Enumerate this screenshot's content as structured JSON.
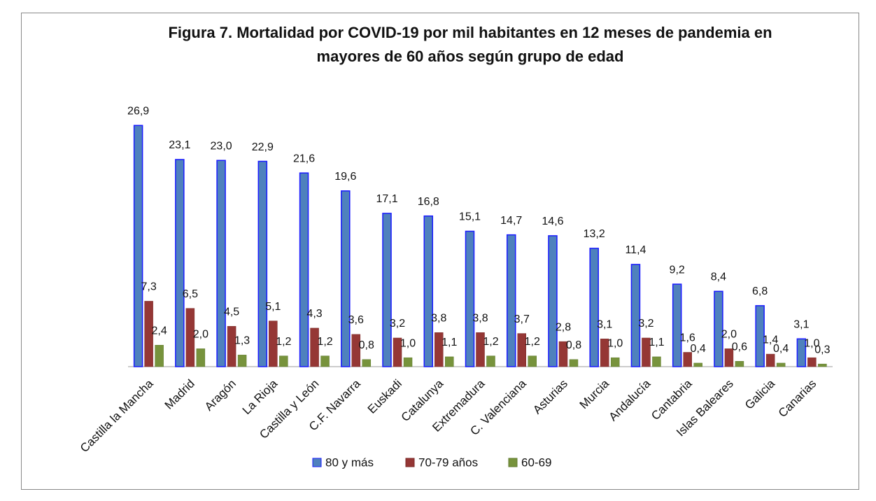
{
  "chart_data": {
    "type": "bar",
    "title": "Figura 7. Mortalidad por COVID-19 por mil habitantes en 12 meses de pandemia en mayores de 60 años según grupo de edad",
    "categories": [
      "Castilla la Mancha",
      "Madrid",
      "Aragón",
      "La Rioja",
      "Castilla y León",
      "C.F. Navarra",
      "Euskadi",
      "Catalunya",
      "Extremadura",
      "C. Valenciana",
      "Asturias",
      "Murcia",
      "Andalucía",
      "Cantabria",
      "Islas Baleares",
      "Galicia",
      "Canarias"
    ],
    "series": [
      {
        "name": "80 y más",
        "color": "#4f81bd",
        "values": [
          26.9,
          23.1,
          23.0,
          22.9,
          21.6,
          19.6,
          17.1,
          16.8,
          15.1,
          14.7,
          14.6,
          13.2,
          11.4,
          9.2,
          8.4,
          6.8,
          3.1
        ],
        "value_labels": [
          "26,9",
          "23,1",
          "23,0",
          "22,9",
          "21,6",
          "19,6",
          "17,1",
          "16,8",
          "15,1",
          "14,7",
          "14,6",
          "13,2",
          "11,4",
          "9,2",
          "8,4",
          "6,8",
          "3,1"
        ]
      },
      {
        "name": "70-79 años",
        "color": "#953735",
        "values": [
          7.3,
          6.5,
          4.5,
          5.1,
          4.3,
          3.6,
          3.2,
          3.8,
          3.8,
          3.7,
          2.8,
          3.1,
          3.2,
          1.6,
          2.0,
          1.4,
          1.0
        ],
        "value_labels": [
          "7,3",
          "6,5",
          "4,5",
          "5,1",
          "4,3",
          "3,6",
          "3,2",
          "3,8",
          "3,8",
          "3,7",
          "2,8",
          "3,1",
          "3,2",
          "1,6",
          "2,0",
          "1,4",
          "1,0"
        ]
      },
      {
        "name": "60-69",
        "color": "#77933c",
        "values": [
          2.4,
          2.0,
          1.3,
          1.2,
          1.2,
          0.8,
          1.0,
          1.1,
          1.2,
          1.2,
          0.8,
          1.0,
          1.1,
          0.4,
          0.6,
          0.4,
          0.3
        ],
        "value_labels": [
          "2,4",
          "2,0",
          "1,3",
          "1,2",
          "1,2",
          "0,8",
          "1,0",
          "1,1",
          "1,2",
          "1,2",
          "0,8",
          "1,0",
          "1,1",
          "0,4",
          "0,6",
          "0,4",
          "0,3"
        ]
      }
    ],
    "ylim": [
      0,
      27
    ],
    "legend": "bottom"
  }
}
